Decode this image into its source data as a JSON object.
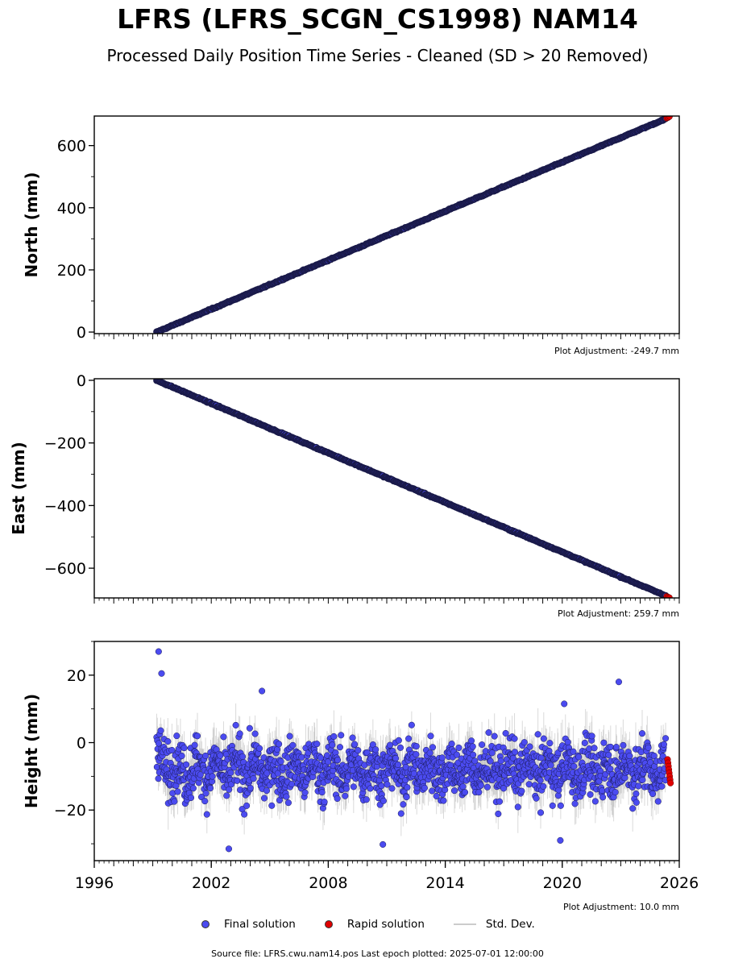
{
  "title": "LFRS (LFRS_SCGN_CS1998) NAM14",
  "subtitle": "Processed Daily Position Time Series - Cleaned (SD > 20 Removed)",
  "colors": {
    "final": "#4b4bf0",
    "rapid": "#e00000",
    "stddev": "#bbbbbb",
    "trend": "#1a1a4a"
  },
  "legend": {
    "final": "Final solution",
    "rapid": "Rapid solution",
    "stddev": "Std. Dev."
  },
  "source": "Source file: LFRS.cwu.nam14.pos  Last epoch plotted: 2025-07-01 12:00:00",
  "chart_data": [
    {
      "type": "scatter",
      "ylabel": "North (mm)",
      "adjustment": "Plot Adjustment: -249.7 mm",
      "xlim": [
        1996,
        2026
      ],
      "ylim": [
        -5,
        695
      ],
      "yticks": [
        0,
        200,
        400,
        600
      ],
      "ytick_labels": [
        "0",
        "200",
        "400",
        "600"
      ],
      "xtick_labels_shown": false,
      "final_trend": {
        "start": [
          1999.2,
          0
        ],
        "end": [
          2025.3,
          686
        ]
      },
      "rapid": {
        "x_range": [
          2025.35,
          2025.5
        ],
        "y_values": [
          688,
          690,
          693
        ]
      }
    },
    {
      "type": "scatter",
      "ylabel": "East (mm)",
      "adjustment": "Plot Adjustment: 259.7 mm",
      "xlim": [
        1996,
        2026
      ],
      "ylim": [
        -695,
        5
      ],
      "yticks": [
        0,
        -200,
        -400,
        -600
      ],
      "ytick_labels": [
        "0",
        "−200",
        "−400",
        "−600"
      ],
      "xtick_labels_shown": false,
      "final_trend": {
        "start": [
          1999.2,
          0
        ],
        "end": [
          2025.3,
          -688
        ]
      },
      "rapid": {
        "x_range": [
          2025.35,
          2025.5
        ],
        "y_values": [
          -690,
          -692,
          -694
        ]
      }
    },
    {
      "type": "scatter",
      "ylabel": "Height (mm)",
      "adjustment": "Plot Adjustment: 10.0 mm",
      "xlim": [
        1996,
        2026
      ],
      "ylim": [
        -35,
        30
      ],
      "yticks": [
        20,
        0,
        -20
      ],
      "ytick_labels": [
        "20",
        "0",
        "−20"
      ],
      "xticks": [
        1996,
        2002,
        2008,
        2014,
        2020,
        2026
      ],
      "xtick_labels": [
        "1996",
        "2002",
        "2008",
        "2014",
        "2020",
        "2026"
      ],
      "xtick_labels_shown": true,
      "final_series_summary": {
        "x_range": [
          1999.2,
          2025.3
        ],
        "mean": -8,
        "spread_sd": 6
      },
      "notable_points": [
        [
          1999.3,
          27
        ],
        [
          1999.45,
          20.5
        ],
        [
          2002.9,
          -31.5
        ],
        [
          2004.6,
          15.3
        ],
        [
          2010.8,
          -30.2
        ],
        [
          2019.9,
          -29
        ],
        [
          2020.1,
          11.5
        ],
        [
          2022.9,
          18
        ]
      ],
      "rapid": {
        "x_range": [
          2025.4,
          2025.55
        ],
        "y_values": [
          -5,
          -6,
          -7,
          -8,
          -9,
          -10,
          -11,
          -12
        ]
      }
    }
  ]
}
